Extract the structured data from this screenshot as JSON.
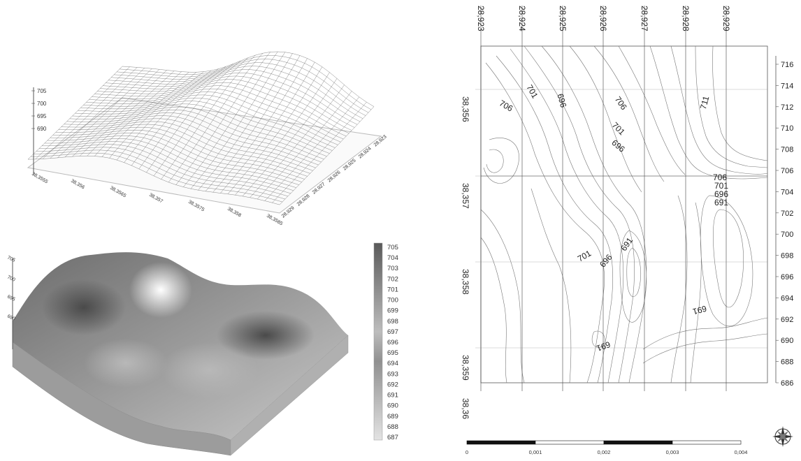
{
  "wireframe": {
    "z_ticks": [
      "705",
      "700",
      "695",
      "690"
    ],
    "x_ticks": [
      "38,3555",
      "38,356",
      "38,3565",
      "38,357",
      "38,3575",
      "38,358",
      "38,3585"
    ],
    "y_ticks": [
      "28,929",
      "28,928",
      "28,927",
      "28,926",
      "28,925",
      "28,924",
      "28,923"
    ]
  },
  "shaded": {
    "z_ticks": [
      "705",
      "700",
      "695",
      "690"
    ],
    "legend": [
      "705",
      "704",
      "703",
      "702",
      "701",
      "700",
      "699",
      "698",
      "697",
      "696",
      "695",
      "694",
      "693",
      "692",
      "691",
      "690",
      "689",
      "688",
      "687"
    ]
  },
  "contour_map": {
    "top_lon_labels": [
      "28,923",
      "28,924",
      "28,925",
      "28,926",
      "28,927",
      "28,928",
      "28,929"
    ],
    "left_lat_labels": [
      "38,356",
      "38,357",
      "38,358",
      "38,359",
      "38,36"
    ],
    "contour_labels": [
      "706",
      "701",
      "696",
      "706",
      "701",
      "696",
      "711",
      "706",
      "701",
      "696",
      "691",
      "701",
      "696",
      "691",
      "691",
      "691"
    ],
    "elevation_scale": [
      "716",
      "714",
      "712",
      "710",
      "708",
      "706",
      "704",
      "702",
      "700",
      "698",
      "696",
      "694",
      "692",
      "690",
      "688",
      "686"
    ],
    "scale_bar": [
      "0",
      "0,001",
      "0,002",
      "0,003",
      "0,004"
    ]
  }
}
